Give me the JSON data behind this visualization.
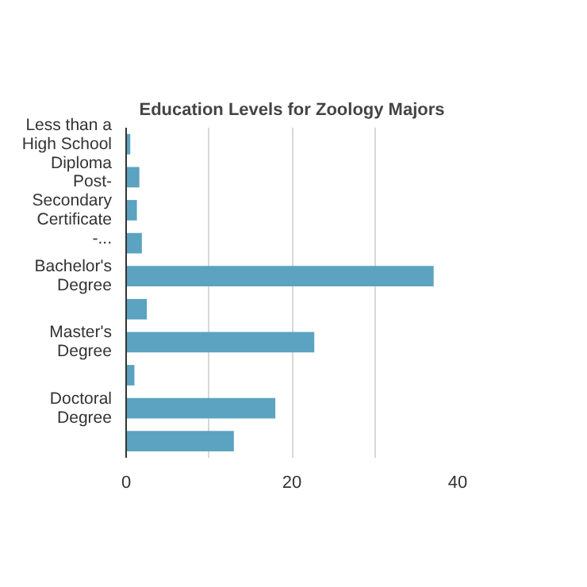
{
  "chart_data": {
    "type": "bar",
    "orientation": "horizontal",
    "title": "Education Levels for Zoology Majors",
    "categories": [
      "Less than a High School Diploma",
      null,
      "Post-Secondary Certificate -...",
      null,
      "Bachelor's Degree",
      null,
      "Master's Degree",
      null,
      "Doctoral Degree",
      null
    ],
    "values": [
      0.5,
      1.6,
      1.3,
      1.9,
      37.1,
      2.5,
      22.7,
      1.0,
      18.0,
      13.0
    ],
    "color": "#5ba3c0",
    "xlim": [
      0,
      40
    ],
    "xticks": [
      0,
      {
        "value": 10,
        "label": null
      },
      20,
      {
        "value": 30,
        "label": null
      },
      40
    ],
    "grid": "x"
  }
}
